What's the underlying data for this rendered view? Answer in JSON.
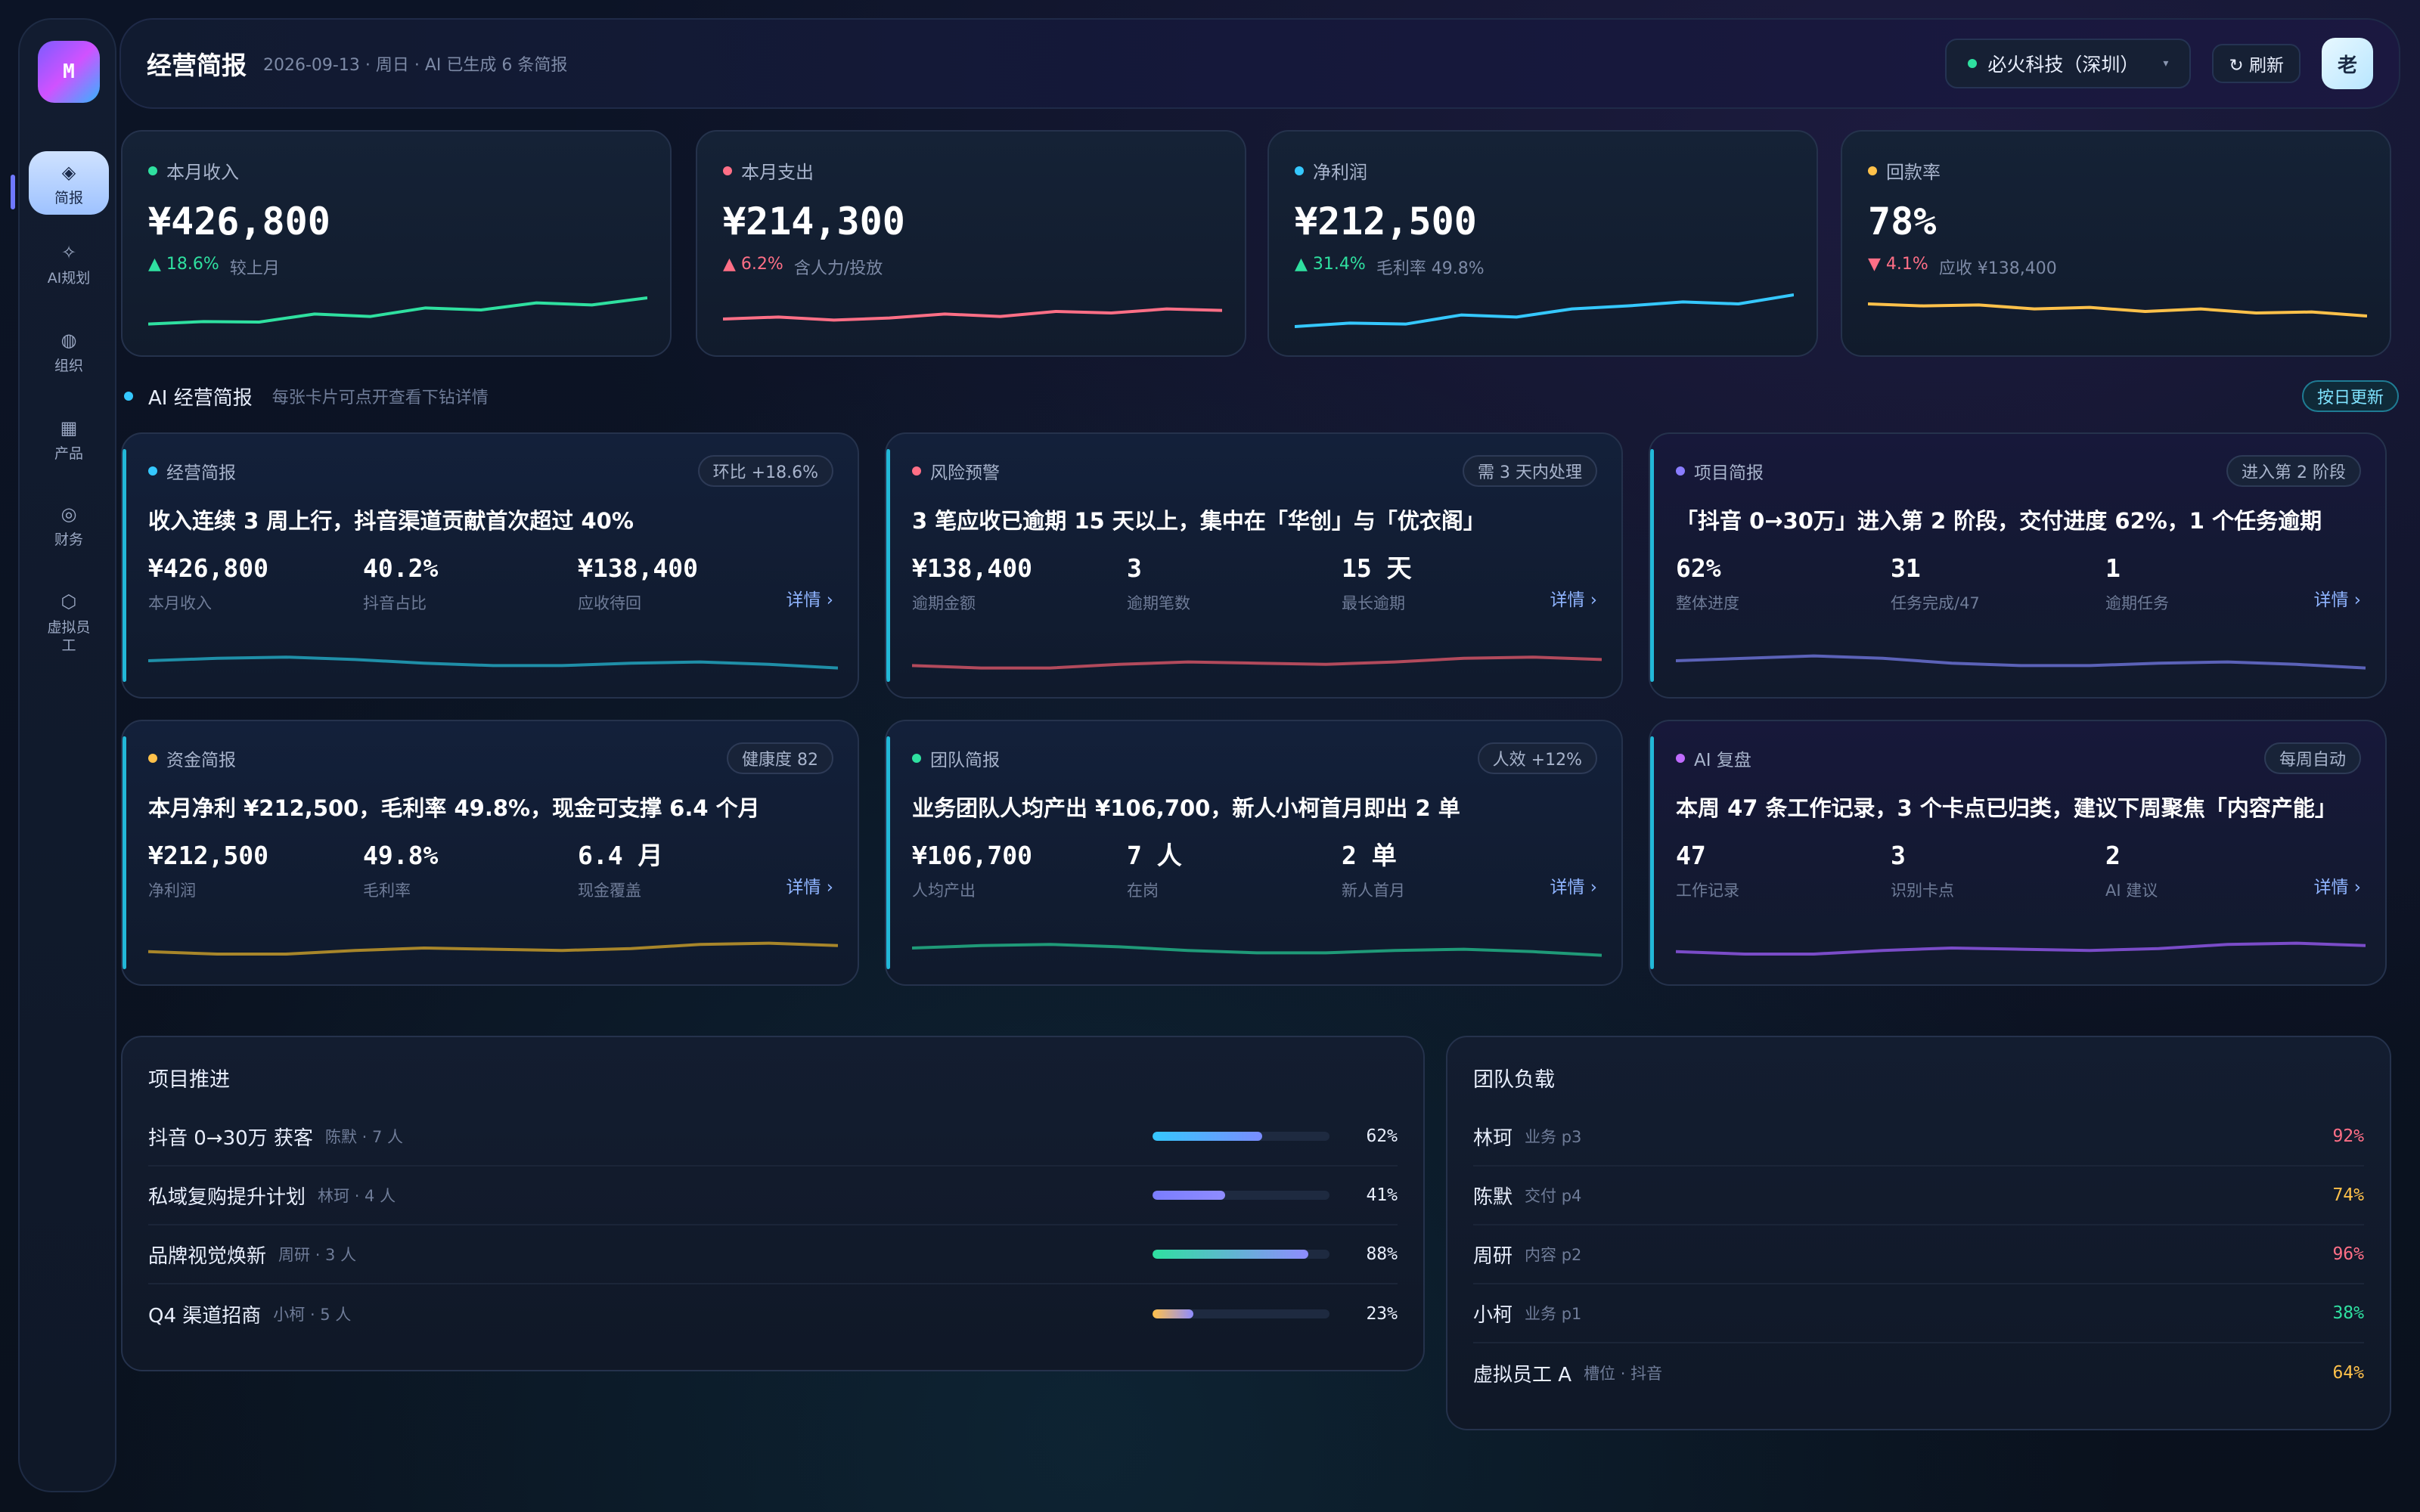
{
  "sidebar": {
    "logo": "M",
    "items": [
      {
        "label": "简报",
        "icon": "diamond-icon",
        "glyph": "◈"
      },
      {
        "label": "AI规划",
        "icon": "sparkle-icon",
        "glyph": "✧"
      },
      {
        "label": "组织",
        "icon": "globe-icon",
        "glyph": "◍"
      },
      {
        "label": "产品",
        "icon": "grid-icon",
        "glyph": "▦"
      },
      {
        "label": "财务",
        "icon": "target-icon",
        "glyph": "◎"
      },
      {
        "label": "虚拟员工",
        "icon": "hexagon-icon",
        "glyph": "⬡"
      }
    ]
  },
  "header": {
    "title": "经营简报",
    "subtitle": "2026-09-13 · 周日 · AI 已生成 6 条简报",
    "company": "必火科技（深圳）",
    "caret": "▾",
    "refresh": "↻ 刷新",
    "avatar": "老"
  },
  "kpis": [
    {
      "label": "本月收入",
      "value": "¥426,800",
      "delta": "▲ 18.6%",
      "note": "较上月",
      "color": "#2fe0a0",
      "delta_color": "#2fe0a0",
      "trend": [
        2,
        2.5,
        2.4,
        4,
        3.5,
        5.2,
        4.8,
        6.2,
        5.8,
        7.2
      ]
    },
    {
      "label": "本月支出",
      "value": "¥214,300",
      "delta": "▲ 6.2%",
      "note": "含人力/投放",
      "color": "#ff6f86",
      "delta_color": "#ff6f86",
      "trend": [
        3,
        3.4,
        2.8,
        3.2,
        4,
        3.5,
        4.5,
        4.2,
        5,
        4.7
      ]
    },
    {
      "label": "净利润",
      "value": "¥212,500",
      "delta": "▲ 31.4%",
      "note": "毛利率 49.8%",
      "color": "#35c8ff",
      "delta_color": "#2fe0a0",
      "trend": [
        1.5,
        2.2,
        2,
        3.8,
        3.4,
        5,
        5.6,
        6.4,
        6,
        7.8
      ]
    },
    {
      "label": "回款率",
      "value": "78%",
      "delta": "▼ 4.1%",
      "note": "应收 ¥138,400",
      "color": "#ffc14a",
      "delta_color": "#ff6f86",
      "trend": [
        6,
        5.6,
        5.8,
        5,
        5.3,
        4.5,
        5,
        4.2,
        4.4,
        3.6
      ]
    }
  ],
  "section": {
    "title": "AI 经营简报",
    "subtitle": "每张卡片可点开查看下钻详情",
    "badge": "按日更新"
  },
  "cards": [
    {
      "tag": "经营简报",
      "dot": "#35c8ff",
      "badge": "环比 +18.6%",
      "headline": "收入连续 3 周上行，抖音渠道贡献首次超过 40%",
      "metrics": [
        {
          "v": "¥426,800",
          "l": "本月收入"
        },
        {
          "v": "40.2%",
          "l": "抖音占比"
        },
        {
          "v": "¥138,400",
          "l": "应收待回"
        }
      ],
      "detail": "详情 ›",
      "line": "#1f8fa8",
      "trend": [
        5,
        5.4,
        5.6,
        5.2,
        4.6,
        4.2,
        4.2,
        4.6,
        4.8,
        4.4,
        3.8
      ]
    },
    {
      "tag": "风险预警",
      "dot": "#ff6f86",
      "badge": "需 3 天内处理",
      "headline": "3 笔应收已逾期 15 天以上，集中在「华创」与「优衣阁」",
      "metrics": [
        {
          "v": "¥138,400",
          "l": "逾期金额"
        },
        {
          "v": "3",
          "l": "逾期笔数"
        },
        {
          "v": "15 天",
          "l": "最长逾期"
        }
      ],
      "detail": "详情 ›",
      "line": "#b24a5c",
      "trend": [
        4.2,
        3.8,
        3.8,
        4.4,
        4.8,
        4.6,
        4.4,
        4.8,
        5.4,
        5.6,
        5.2
      ]
    },
    {
      "tag": "项目简报",
      "dot": "#8a7dff",
      "badge": "进入第 2 阶段",
      "headline": "「抖音 0→30万」进入第 2 阶段，交付进度 62%，1 个任务逾期",
      "metrics": [
        {
          "v": "62%",
          "l": "整体进度"
        },
        {
          "v": "31",
          "l": "任务完成/47"
        },
        {
          "v": "1",
          "l": "逾期任务"
        }
      ],
      "detail": "详情 ›",
      "line": "#5b62b8",
      "trend": [
        5,
        5.4,
        5.8,
        5.4,
        4.6,
        4.2,
        4.2,
        4.6,
        4.8,
        4.4,
        3.8
      ]
    },
    {
      "tag": "资金简报",
      "dot": "#ffc14a",
      "badge": "健康度 82",
      "headline": "本月净利 ¥212,500，毛利率 49.8%，现金可支撑 6.4 个月",
      "metrics": [
        {
          "v": "¥212,500",
          "l": "净利润"
        },
        {
          "v": "49.8%",
          "l": "毛利率"
        },
        {
          "v": "6.4 月",
          "l": "现金覆盖"
        }
      ],
      "detail": "详情 ›",
      "line": "#a8862a",
      "trend": [
        4.4,
        4,
        4,
        4.6,
        5,
        4.8,
        4.6,
        4.9,
        5.6,
        5.8,
        5.4
      ]
    },
    {
      "tag": "团队简报",
      "dot": "#2fe0a0",
      "badge": "人效 +12%",
      "headline": "业务团队人均产出 ¥106,700，新人小柯首月即出 2 单",
      "metrics": [
        {
          "v": "¥106,700",
          "l": "人均产出"
        },
        {
          "v": "7 人",
          "l": "在岗"
        },
        {
          "v": "2 单",
          "l": "新人首月"
        }
      ],
      "detail": "详情 ›",
      "line": "#1f9a78",
      "trend": [
        5,
        5.4,
        5.6,
        5.2,
        4.6,
        4.2,
        4.2,
        4.6,
        4.8,
        4.4,
        3.8
      ]
    },
    {
      "tag": "AI 复盘",
      "dot": "#c06bff",
      "badge": "每周自动",
      "headline": "本周 47 条工作记录，3 个卡点已归类，建议下周聚焦「内容产能」",
      "metrics": [
        {
          "v": "47",
          "l": "工作记录"
        },
        {
          "v": "3",
          "l": "识别卡点"
        },
        {
          "v": "2",
          "l": "AI 建议"
        }
      ],
      "detail": "详情 ›",
      "line": "#7a4cc8",
      "trend": [
        4.4,
        4,
        4,
        4.6,
        5,
        4.8,
        4.6,
        4.9,
        5.6,
        5.8,
        5.4
      ]
    }
  ],
  "projects": {
    "title": "项目推进",
    "rows": [
      {
        "name": "抖音 0→30万 获客",
        "meta": "陈默 · 7 人",
        "progress": 0.62,
        "pct": "62%",
        "grad": "linear-gradient(90deg,#35c8ff,#7a8cff)"
      },
      {
        "name": "私域复购提升计划",
        "meta": "林珂 · 4 人",
        "progress": 0.41,
        "pct": "41%",
        "grad": "linear-gradient(90deg,#7a7dff,#8f8cff)"
      },
      {
        "name": "品牌视觉焕新",
        "meta": "周研 · 3 人",
        "progress": 0.88,
        "pct": "88%",
        "grad": "linear-gradient(90deg,#2fe0a0,#8f8cff)"
      },
      {
        "name": "Q4 渠道招商",
        "meta": "小柯 · 5 人",
        "progress": 0.23,
        "pct": "23%",
        "grad": "linear-gradient(90deg,#ffc14a,#8f8cff)"
      }
    ]
  },
  "team": {
    "title": "团队负载",
    "rows": [
      {
        "name": "林珂",
        "meta": "业务 p3",
        "pct": "92%",
        "color": "#ff6f86"
      },
      {
        "name": "陈默",
        "meta": "交付 p4",
        "pct": "74%",
        "color": "#ffc14a"
      },
      {
        "name": "周研",
        "meta": "内容 p2",
        "pct": "96%",
        "color": "#ff6f86"
      },
      {
        "name": "小柯",
        "meta": "业务 p1",
        "pct": "38%",
        "color": "#2fe0a0"
      },
      {
        "name": "虚拟员工 A",
        "meta": "槽位 · 抖音",
        "pct": "64%",
        "color": "#ffc14a"
      }
    ]
  }
}
